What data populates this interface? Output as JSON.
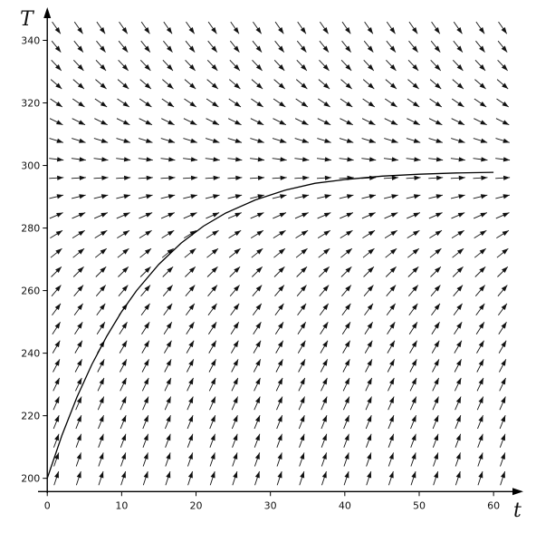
{
  "chart_data": {
    "type": "slope-field",
    "title": "",
    "xlabel": "t",
    "ylabel": "T",
    "xlim": [
      -1,
      64
    ],
    "ylim": [
      197,
      350
    ],
    "x_ticks": [
      0,
      10,
      20,
      30,
      40,
      50,
      60
    ],
    "y_ticks": [
      200,
      220,
      240,
      260,
      280,
      300,
      320,
      340
    ],
    "equilibrium_T": 298,
    "rate_k": 0.0733,
    "field_grid": {
      "t_values": [
        0,
        3,
        6,
        9,
        12,
        15,
        18,
        21,
        24,
        27,
        30,
        33,
        36,
        39,
        42,
        45,
        48,
        51,
        54,
        57,
        60
      ],
      "T_values": [
        200,
        206,
        212,
        218,
        224,
        230,
        236,
        242,
        248,
        254,
        260,
        266,
        272,
        278,
        284,
        290,
        296,
        302,
        308,
        314,
        320,
        326,
        332,
        338,
        344
      ]
    },
    "solution_curve": {
      "t": [
        0,
        2,
        4,
        6,
        8,
        10,
        12,
        15,
        18,
        21,
        24,
        28,
        32,
        36,
        40,
        45,
        50,
        55,
        60
      ],
      "T": [
        200,
        213.9,
        226.0,
        236.4,
        245.4,
        253.3,
        260.0,
        268.4,
        275.2,
        280.6,
        284.8,
        289.0,
        292.1,
        294.3,
        295.5,
        296.6,
        297.2,
        297.6,
        297.8
      ]
    },
    "grid": false,
    "legend": "none"
  }
}
